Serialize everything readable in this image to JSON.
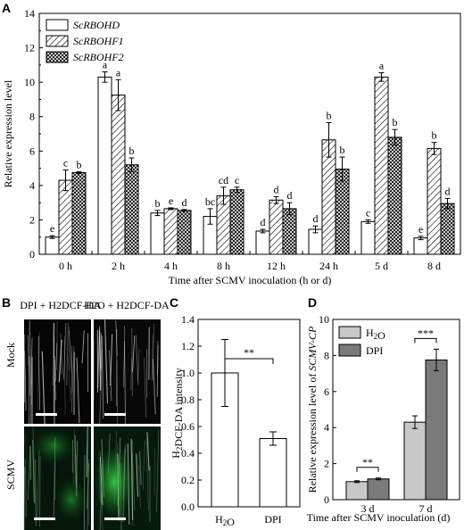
{
  "panels": {
    "A": "A",
    "B": "B",
    "C": "C",
    "D": "D"
  },
  "chart_data": [
    {
      "id": "A",
      "type": "bar",
      "xlabel": "Time after SCMV inoculation (h or d)",
      "ylabel": "Relative expression level",
      "ylim": [
        0,
        14
      ],
      "yticks": [
        "0",
        "2",
        "4",
        "6",
        "8",
        "10",
        "12",
        "14"
      ],
      "categories": [
        "0 h",
        "2 h",
        "4 h",
        "8 h",
        "12 h",
        "24 h",
        "5 d",
        "8 d"
      ],
      "legend_position": "top-left",
      "series": [
        {
          "name": "ScRBOHD",
          "pattern": "white",
          "values": [
            1.0,
            10.3,
            2.4,
            2.2,
            1.35,
            1.45,
            1.9,
            0.95
          ],
          "errors": [
            0.08,
            0.3,
            0.15,
            0.45,
            0.1,
            0.2,
            0.1,
            0.1
          ],
          "letters": [
            "e",
            "a",
            "b",
            "bc",
            "d",
            "d",
            "c",
            "e"
          ]
        },
        {
          "name": "ScRBOHF1",
          "pattern": "hatch",
          "values": [
            4.3,
            9.25,
            2.65,
            3.4,
            3.15,
            6.65,
            10.3,
            6.15
          ],
          "errors": [
            0.6,
            0.9,
            0.05,
            0.5,
            0.2,
            1.0,
            0.25,
            0.35
          ],
          "letters": [
            "c",
            "a",
            "e",
            "cd",
            "d",
            "b",
            "a",
            "b"
          ]
        },
        {
          "name": "ScRBOHF2",
          "pattern": "cross",
          "values": [
            4.75,
            5.2,
            2.55,
            3.75,
            2.65,
            4.95,
            6.8,
            2.95
          ],
          "errors": [
            0.05,
            0.4,
            0.05,
            0.15,
            0.35,
            0.7,
            0.45,
            0.3
          ],
          "letters": [
            "b",
            "b",
            "d",
            "c",
            "d",
            "b",
            "b",
            "d"
          ]
        }
      ]
    },
    {
      "id": "C",
      "type": "bar",
      "ylabel": "H2DCF-DA intensity",
      "ylim": [
        0,
        1.4
      ],
      "yticks": [
        "0.0",
        "0.2",
        "0.4",
        "0.6",
        "0.8",
        "1.0",
        "1.2",
        "1.4"
      ],
      "categories": [
        "H2O",
        "DPI"
      ],
      "values": [
        1.0,
        0.51
      ],
      "errors": [
        0.25,
        0.05
      ],
      "significance": "**"
    },
    {
      "id": "D",
      "type": "bar",
      "xlabel": "Time after SCMV inoculation (d)",
      "ylabel": "Relative expression level of SCMV-CP",
      "ylim": [
        0,
        10
      ],
      "yticks": [
        "0",
        "2",
        "4",
        "6",
        "8",
        "10"
      ],
      "categories": [
        "3 d",
        "7 d"
      ],
      "legend_position": "top-left",
      "series": [
        {
          "name": "H2O",
          "color": "#c8c8c8",
          "values": [
            1.0,
            4.3
          ],
          "errors": [
            0.05,
            0.35
          ]
        },
        {
          "name": "DPI",
          "color": "#7a7a7a",
          "values": [
            1.15,
            7.75
          ],
          "errors": [
            0.05,
            0.6
          ]
        }
      ],
      "significance": [
        "**",
        "***"
      ]
    }
  ],
  "micrographs": {
    "columns": [
      "DPI + H2DCF-DA",
      "H2O + H2DCF-DA"
    ],
    "rows": [
      "Mock",
      "SCMV"
    ]
  }
}
